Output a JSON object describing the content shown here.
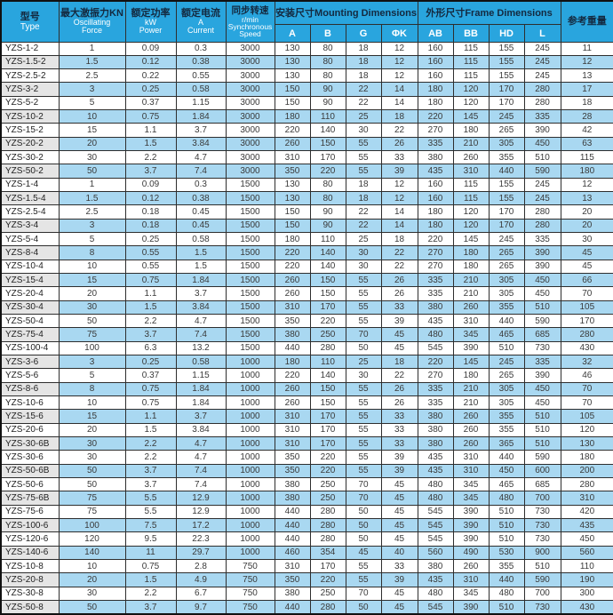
{
  "colors": {
    "header_bg": "#29a5de",
    "row_alt": "#a9d8f1",
    "type_alt": "#e5e5e5",
    "border": "#2e2e2e",
    "text": "#3a3a3a",
    "hdr_dark": "#14293f",
    "hdr_light": "#ffffff"
  },
  "table": {
    "columns": {
      "type_zh": "型号",
      "type_en": "Type",
      "force_zh": "最大激振力KN",
      "force_en1": "Oscillating",
      "force_en2": "Force",
      "power_zh": "额定功率",
      "power_en1": "kW",
      "power_en2": "Power",
      "current_zh": "额定电流",
      "current_en1": "A",
      "current_en2": "Current",
      "speed_zh": "同步转速",
      "speed_en1": "r/min",
      "speed_en2": "Synchronous",
      "speed_en3": "Speed",
      "mounting": "安装尺寸Mounting Dimensions",
      "frame": "外形尺寸Frame Dimensions",
      "weight_zh": "参考重量",
      "sub": [
        "A",
        "B",
        "G",
        "ΦK",
        "AB",
        "BB",
        "HD",
        "L"
      ]
    },
    "rows": [
      [
        "YZS-1-2",
        "1",
        "0.09",
        "0.3",
        "3000",
        "130",
        "80",
        "18",
        "12",
        "160",
        "115",
        "155",
        "245",
        "11"
      ],
      [
        "YZS-1.5-2",
        "1.5",
        "0.12",
        "0.38",
        "3000",
        "130",
        "80",
        "18",
        "12",
        "160",
        "115",
        "155",
        "245",
        "12"
      ],
      [
        "YZS-2.5-2",
        "2.5",
        "0.22",
        "0.55",
        "3000",
        "130",
        "80",
        "18",
        "12",
        "160",
        "115",
        "155",
        "245",
        "13"
      ],
      [
        "YZS-3-2",
        "3",
        "0.25",
        "0.58",
        "3000",
        "150",
        "90",
        "22",
        "14",
        "180",
        "120",
        "170",
        "280",
        "17"
      ],
      [
        "YZS-5-2",
        "5",
        "0.37",
        "1.15",
        "3000",
        "150",
        "90",
        "22",
        "14",
        "180",
        "120",
        "170",
        "280",
        "18"
      ],
      [
        "YZS-10-2",
        "10",
        "0.75",
        "1.84",
        "3000",
        "180",
        "110",
        "25",
        "18",
        "220",
        "145",
        "245",
        "335",
        "28"
      ],
      [
        "YZS-15-2",
        "15",
        "1.1",
        "3.7",
        "3000",
        "220",
        "140",
        "30",
        "22",
        "270",
        "180",
        "265",
        "390",
        "42"
      ],
      [
        "YZS-20-2",
        "20",
        "1.5",
        "3.84",
        "3000",
        "260",
        "150",
        "55",
        "26",
        "335",
        "210",
        "305",
        "450",
        "63"
      ],
      [
        "YZS-30-2",
        "30",
        "2.2",
        "4.7",
        "3000",
        "310",
        "170",
        "55",
        "33",
        "380",
        "260",
        "355",
        "510",
        "115"
      ],
      [
        "YZS-50-2",
        "50",
        "3.7",
        "7.4",
        "3000",
        "350",
        "220",
        "55",
        "39",
        "435",
        "310",
        "440",
        "590",
        "180"
      ],
      [
        "YZS-1-4",
        "1",
        "0.09",
        "0.3",
        "1500",
        "130",
        "80",
        "18",
        "12",
        "160",
        "115",
        "155",
        "245",
        "12"
      ],
      [
        "YZS-1.5-4",
        "1.5",
        "0.12",
        "0.38",
        "1500",
        "130",
        "80",
        "18",
        "12",
        "160",
        "115",
        "155",
        "245",
        "13"
      ],
      [
        "YZS-2.5-4",
        "2.5",
        "0.18",
        "0.45",
        "1500",
        "150",
        "90",
        "22",
        "14",
        "180",
        "120",
        "170",
        "280",
        "20"
      ],
      [
        "YZS-3-4",
        "3",
        "0.18",
        "0.45",
        "1500",
        "150",
        "90",
        "22",
        "14",
        "180",
        "120",
        "170",
        "280",
        "20"
      ],
      [
        "YZS-5-4",
        "5",
        "0.25",
        "0.58",
        "1500",
        "180",
        "110",
        "25",
        "18",
        "220",
        "145",
        "245",
        "335",
        "30"
      ],
      [
        "YZS-8-4",
        "8",
        "0.55",
        "1.5",
        "1500",
        "220",
        "140",
        "30",
        "22",
        "270",
        "180",
        "265",
        "390",
        "45"
      ],
      [
        "YZS-10-4",
        "10",
        "0.55",
        "1.5",
        "1500",
        "220",
        "140",
        "30",
        "22",
        "270",
        "180",
        "265",
        "390",
        "45"
      ],
      [
        "YZS-15-4",
        "15",
        "0.75",
        "1.84",
        "1500",
        "260",
        "150",
        "55",
        "26",
        "335",
        "210",
        "305",
        "450",
        "66"
      ],
      [
        "YZS-20-4",
        "20",
        "1.1",
        "3.7",
        "1500",
        "260",
        "150",
        "55",
        "26",
        "335",
        "210",
        "305",
        "450",
        "70"
      ],
      [
        "YZS-30-4",
        "30",
        "1.5",
        "3.84",
        "1500",
        "310",
        "170",
        "55",
        "33",
        "380",
        "260",
        "355",
        "510",
        "105"
      ],
      [
        "YZS-50-4",
        "50",
        "2.2",
        "4.7",
        "1500",
        "350",
        "220",
        "55",
        "39",
        "435",
        "310",
        "440",
        "590",
        "170"
      ],
      [
        "YZS-75-4",
        "75",
        "3.7",
        "7.4",
        "1500",
        "380",
        "250",
        "70",
        "45",
        "480",
        "345",
        "465",
        "685",
        "280"
      ],
      [
        "YZS-100-4",
        "100",
        "6.3",
        "13.2",
        "1500",
        "440",
        "280",
        "50",
        "45",
        "545",
        "390",
        "510",
        "730",
        "430"
      ],
      [
        "YZS-3-6",
        "3",
        "0.25",
        "0.58",
        "1000",
        "180",
        "110",
        "25",
        "18",
        "220",
        "145",
        "245",
        "335",
        "32"
      ],
      [
        "YZS-5-6",
        "5",
        "0.37",
        "1.15",
        "1000",
        "220",
        "140",
        "30",
        "22",
        "270",
        "180",
        "265",
        "390",
        "46"
      ],
      [
        "YZS-8-6",
        "8",
        "0.75",
        "1.84",
        "1000",
        "260",
        "150",
        "55",
        "26",
        "335",
        "210",
        "305",
        "450",
        "70"
      ],
      [
        "YZS-10-6",
        "10",
        "0.75",
        "1.84",
        "1000",
        "260",
        "150",
        "55",
        "26",
        "335",
        "210",
        "305",
        "450",
        "70"
      ],
      [
        "YZS-15-6",
        "15",
        "1.1",
        "3.7",
        "1000",
        "310",
        "170",
        "55",
        "33",
        "380",
        "260",
        "355",
        "510",
        "105"
      ],
      [
        "YZS-20-6",
        "20",
        "1.5",
        "3.84",
        "1000",
        "310",
        "170",
        "55",
        "33",
        "380",
        "260",
        "355",
        "510",
        "120"
      ],
      [
        "YZS-30-6B",
        "30",
        "2.2",
        "4.7",
        "1000",
        "310",
        "170",
        "55",
        "33",
        "380",
        "260",
        "365",
        "510",
        "130"
      ],
      [
        "YZS-30-6",
        "30",
        "2.2",
        "4.7",
        "1000",
        "350",
        "220",
        "55",
        "39",
        "435",
        "310",
        "440",
        "590",
        "180"
      ],
      [
        "YZS-50-6B",
        "50",
        "3.7",
        "7.4",
        "1000",
        "350",
        "220",
        "55",
        "39",
        "435",
        "310",
        "450",
        "600",
        "200"
      ],
      [
        "YZS-50-6",
        "50",
        "3.7",
        "7.4",
        "1000",
        "380",
        "250",
        "70",
        "45",
        "480",
        "345",
        "465",
        "685",
        "280"
      ],
      [
        "YZS-75-6B",
        "75",
        "5.5",
        "12.9",
        "1000",
        "380",
        "250",
        "70",
        "45",
        "480",
        "345",
        "480",
        "700",
        "310"
      ],
      [
        "YZS-75-6",
        "75",
        "5.5",
        "12.9",
        "1000",
        "440",
        "280",
        "50",
        "45",
        "545",
        "390",
        "510",
        "730",
        "420"
      ],
      [
        "YZS-100-6",
        "100",
        "7.5",
        "17.2",
        "1000",
        "440",
        "280",
        "50",
        "45",
        "545",
        "390",
        "510",
        "730",
        "435"
      ],
      [
        "YZS-120-6",
        "120",
        "9.5",
        "22.3",
        "1000",
        "440",
        "280",
        "50",
        "45",
        "545",
        "390",
        "510",
        "730",
        "450"
      ],
      [
        "YZS-140-6",
        "140",
        "11",
        "29.7",
        "1000",
        "460",
        "354",
        "45",
        "40",
        "560",
        "490",
        "530",
        "900",
        "560"
      ],
      [
        "YZS-10-8",
        "10",
        "0.75",
        "2.8",
        "750",
        "310",
        "170",
        "55",
        "33",
        "380",
        "260",
        "355",
        "510",
        "110"
      ],
      [
        "YZS-20-8",
        "20",
        "1.5",
        "4.9",
        "750",
        "350",
        "220",
        "55",
        "39",
        "435",
        "310",
        "440",
        "590",
        "190"
      ],
      [
        "YZS-30-8",
        "30",
        "2.2",
        "6.7",
        "750",
        "380",
        "250",
        "70",
        "45",
        "480",
        "345",
        "480",
        "700",
        "300"
      ],
      [
        "YZS-50-8",
        "50",
        "3.7",
        "9.7",
        "750",
        "440",
        "280",
        "50",
        "45",
        "545",
        "390",
        "510",
        "730",
        "430"
      ]
    ]
  }
}
